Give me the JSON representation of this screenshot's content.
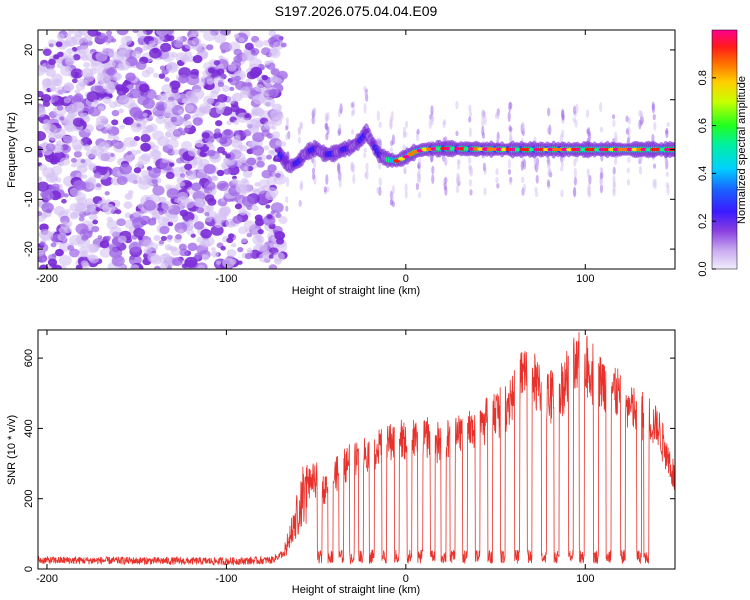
{
  "title": "S197.2026.075.04.04.E09",
  "colors": {
    "snr_line": "#e8312a",
    "colormap": [
      "#f2eefc",
      "#d4c0f3",
      "#9f67e6",
      "#7a2bd6",
      "#2a1aff",
      "#00c8ff",
      "#00ff7a",
      "#ffe600",
      "#ff7a00",
      "#ff1a1a",
      "#ff00a0"
    ]
  },
  "chart_data": [
    {
      "type": "heatmap",
      "title": "",
      "xlabel": "Height of straight line (km)",
      "ylabel": "Frequency (Hz)",
      "xlim": [
        -205,
        150
      ],
      "ylim": [
        -24,
        24
      ],
      "xticks": [
        -200,
        -100,
        0,
        100
      ],
      "yticks": [
        -20,
        -10,
        0,
        10,
        20
      ],
      "colorbar": {
        "label": "Normalized spectral amplitude",
        "range": [
          0,
          1
        ],
        "ticks": [
          "0.0",
          "0.2",
          "0.4",
          "0.6",
          "0.8"
        ]
      },
      "noise_region_x": [
        -205,
        -68
      ],
      "carrier_track": {
        "x": [
          -70,
          -65,
          -60,
          -55,
          -50,
          -45,
          -40,
          -35,
          -30,
          -25,
          -22,
          -19,
          -15,
          -10,
          -5,
          0,
          5,
          10,
          20,
          40,
          60,
          80,
          100,
          120,
          150
        ],
        "frequency": [
          -1,
          -3.5,
          -2.5,
          -0.5,
          0.3,
          -1,
          -0.8,
          0,
          0.5,
          2,
          3.5,
          1.5,
          -1,
          -2,
          -2.3,
          -1.5,
          -0.5,
          0,
          0.2,
          0.1,
          0,
          0,
          0,
          0,
          0
        ]
      }
    },
    {
      "type": "line",
      "title": "",
      "xlabel": "Height of straight line (km)",
      "ylabel": "SNR (10 * v/v)",
      "xlim": [
        -205,
        150
      ],
      "ylim": [
        0,
        680
      ],
      "xticks": [
        -200,
        -100,
        0,
        100
      ],
      "yticks": [
        0,
        200,
        400,
        600
      ],
      "noise_floor_points": [
        [
          -205,
          25
        ],
        [
          -100,
          22
        ],
        [
          -75,
          25
        ],
        [
          -68,
          45
        ]
      ],
      "envelope_points": [
        [
          -68,
          45
        ],
        [
          -62,
          130
        ],
        [
          -55,
          250
        ],
        [
          -50,
          260
        ],
        [
          -45,
          240
        ],
        [
          -40,
          270
        ],
        [
          -35,
          300
        ],
        [
          -30,
          320
        ],
        [
          -25,
          330
        ],
        [
          -20,
          340
        ],
        [
          -15,
          360
        ],
        [
          -10,
          370
        ],
        [
          -5,
          380
        ],
        [
          0,
          370
        ],
        [
          5,
          380
        ],
        [
          10,
          390
        ],
        [
          15,
          380
        ],
        [
          20,
          360
        ],
        [
          25,
          380
        ],
        [
          30,
          400
        ],
        [
          35,
          410
        ],
        [
          40,
          420
        ],
        [
          45,
          440
        ],
        [
          50,
          460
        ],
        [
          55,
          480
        ],
        [
          60,
          520
        ],
        [
          65,
          570
        ],
        [
          70,
          560
        ],
        [
          75,
          520
        ],
        [
          80,
          500
        ],
        [
          85,
          520
        ],
        [
          90,
          560
        ],
        [
          95,
          590
        ],
        [
          100,
          600
        ],
        [
          105,
          570
        ],
        [
          110,
          540
        ],
        [
          115,
          530
        ],
        [
          120,
          500
        ],
        [
          125,
          470
        ],
        [
          130,
          450
        ],
        [
          135,
          440
        ],
        [
          140,
          420
        ],
        [
          145,
          350
        ],
        [
          150,
          260
        ]
      ],
      "dropout_centers": [
        -48,
        -42,
        -36,
        -30,
        -25,
        -19,
        -12,
        -5,
        2,
        8,
        15,
        21,
        26,
        33,
        40,
        47,
        54,
        62,
        69,
        77,
        84,
        92,
        98,
        106,
        113,
        121,
        130,
        134
      ]
    }
  ]
}
